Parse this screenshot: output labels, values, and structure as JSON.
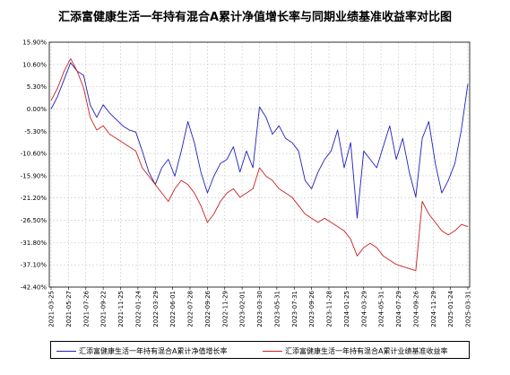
{
  "chart_data": {
    "type": "line",
    "title": "汇添富健康生活一年持有混合A累计净值增长率与同期业绩基准收益率对比图",
    "ylim": [
      -42.4,
      15.9
    ],
    "yticks": [
      "15.90%",
      "10.60%",
      "5.30%",
      "0.00%",
      "-5.30%",
      "-10.60%",
      "-15.90%",
      "-21.20%",
      "-26.50%",
      "-31.80%",
      "-37.10%",
      "-42.40%"
    ],
    "ytick_values": [
      15.9,
      10.6,
      5.3,
      0.0,
      -5.3,
      -10.6,
      -15.9,
      -21.2,
      -26.5,
      -31.8,
      -37.1,
      -42.4
    ],
    "xticks": [
      "2021-03-25",
      "2021-05-27",
      "2021-07-26",
      "2021-09-22",
      "2021-11-25",
      "2022-01-24",
      "2022-03-29",
      "2022-06-01",
      "2022-07-28",
      "2022-09-26",
      "2022-11-29",
      "2023-02-01",
      "2023-03-30",
      "2023-05-31",
      "2023-07-31",
      "2023-09-26",
      "2023-11-28",
      "2024-01-25",
      "2024-03-29",
      "2024-05-31",
      "2024-07-29",
      "2024-09-26",
      "2024-11-29",
      "2025-01-24",
      "2025-03-31"
    ],
    "grid": true,
    "legend_position": "bottom",
    "series": [
      {
        "name": "汇添富健康生活一年持有混合A累计净值增长率",
        "color": "#1f1fbf",
        "values": [
          0.0,
          3.0,
          7.0,
          11.0,
          9.0,
          8.0,
          1.0,
          -2.0,
          1.0,
          -1.0,
          -2.5,
          -4.0,
          -5.0,
          -5.5,
          -10.0,
          -15.0,
          -18.0,
          -14.0,
          -12.0,
          -16.0,
          -10.0,
          -3.0,
          -8.0,
          -15.0,
          -20.0,
          -16.0,
          -13.0,
          -12.0,
          -9.0,
          -15.0,
          -10.0,
          -14.0,
          0.5,
          -2.0,
          -6.0,
          -4.0,
          -7.0,
          -8.0,
          -10.0,
          -17.0,
          -19.0,
          -15.0,
          -12.0,
          -10.0,
          -5.0,
          -14.0,
          -8.0,
          -26.0,
          -10.0,
          -12.0,
          -14.0,
          -9.0,
          -4.0,
          -12.0,
          -7.0,
          -15.0,
          -21.0,
          -7.0,
          -3.0,
          -13.0,
          -20.0,
          -17.0,
          -13.0,
          -5.0,
          6.0
        ]
      },
      {
        "name": "汇添富健康生活一年持有混合A累计业绩基准收益率",
        "color": "#cc2020",
        "values": [
          2.0,
          5.0,
          9.0,
          12.0,
          9.0,
          5.0,
          -2.0,
          -5.0,
          -4.0,
          -6.0,
          -7.0,
          -8.0,
          -9.0,
          -10.0,
          -14.0,
          -16.0,
          -18.0,
          -20.0,
          -22.0,
          -19.0,
          -17.0,
          -18.0,
          -20.0,
          -23.0,
          -27.0,
          -25.0,
          -22.0,
          -20.0,
          -19.0,
          -21.0,
          -20.0,
          -19.0,
          -14.0,
          -16.0,
          -17.0,
          -19.0,
          -20.0,
          -21.0,
          -23.0,
          -25.0,
          -26.0,
          -27.0,
          -26.0,
          -27.0,
          -28.0,
          -29.0,
          -31.0,
          -35.0,
          -33.0,
          -32.0,
          -33.0,
          -35.0,
          -36.0,
          -37.0,
          -37.5,
          -38.0,
          -38.5,
          -22.0,
          -25.0,
          -27.0,
          -29.0,
          -30.0,
          -29.0,
          -27.5,
          -28.0
        ]
      }
    ]
  }
}
